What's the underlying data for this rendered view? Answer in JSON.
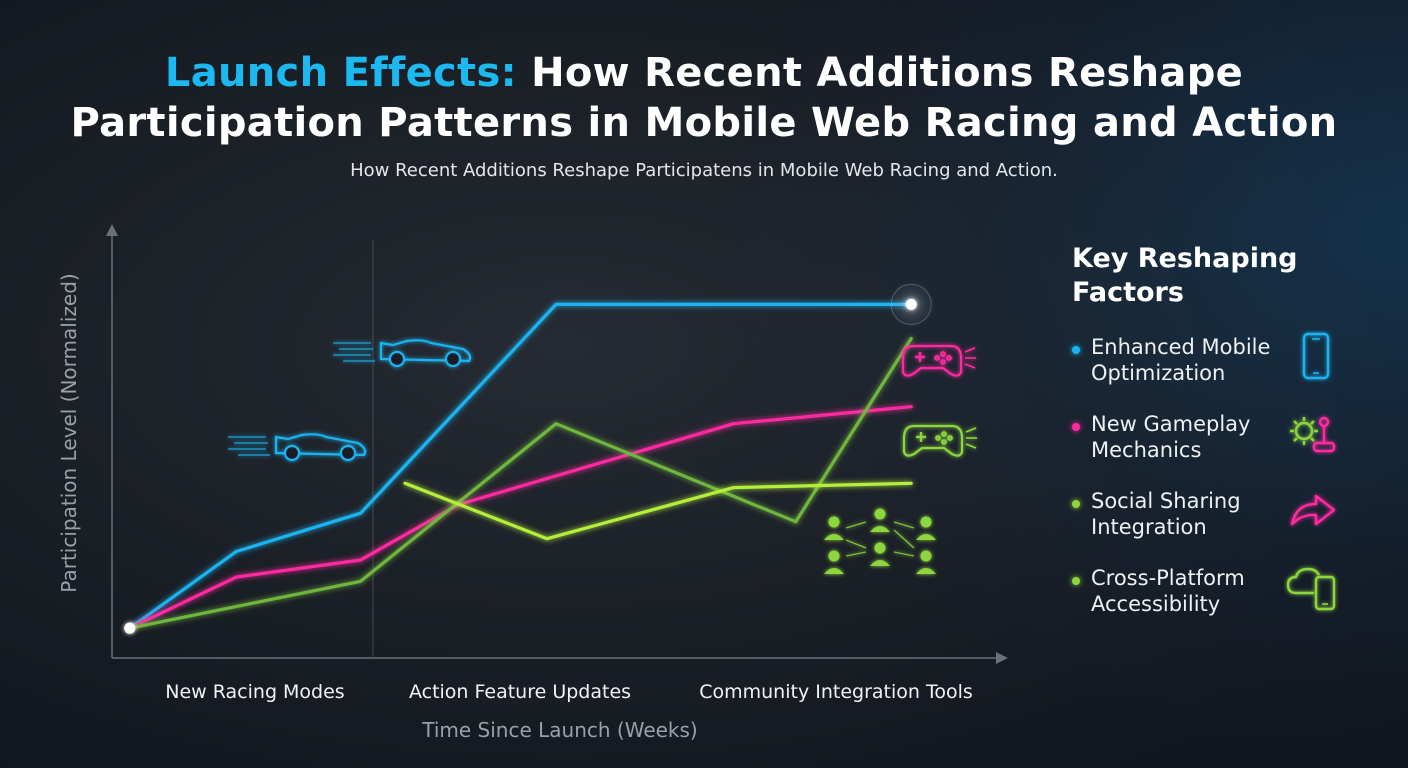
{
  "header": {
    "title_accent": "Launch Effects:",
    "title_rest": " How Recent Additions Reshape",
    "title_line2": "Participation Patterns in Mobile Web Racing and Action",
    "subtitle": "How Recent Additions Reshape Participatens in Mobile Web Racing and Action."
  },
  "chart_data": {
    "type": "line",
    "title": "Launch Effects: How Recent Additions Reshape Participation Patterns in Mobile Web Racing and Action",
    "xlabel": "Time Since Launch (Weeks)",
    "ylabel": "Participation Level (Normalized)",
    "categories": [
      "New Racing Modes",
      "Action Feature Updates",
      "Community Integration Tools"
    ],
    "xlim": [
      0,
      10
    ],
    "ylim": [
      0,
      10
    ],
    "grid": false,
    "legend_position": "right",
    "series": [
      {
        "color": "#1ab4f0",
        "points": [
          [
            0.2,
            0.7
          ],
          [
            1.4,
            2.5
          ],
          [
            2.8,
            3.4
          ],
          [
            5.0,
            8.3
          ],
          [
            9.0,
            8.3
          ]
        ]
      },
      {
        "color": "#ff2aa0",
        "points": [
          [
            0.2,
            0.7
          ],
          [
            1.4,
            1.9
          ],
          [
            2.8,
            2.3
          ],
          [
            3.9,
            3.6
          ],
          [
            7.0,
            5.5
          ],
          [
            9.0,
            5.9
          ]
        ]
      },
      {
        "color": "#6fb53c",
        "points": [
          [
            0.2,
            0.7
          ],
          [
            2.8,
            1.8
          ],
          [
            5.0,
            5.5
          ],
          [
            7.7,
            3.2
          ]
        ]
      },
      {
        "color": "#6fb53c",
        "points": [
          [
            7.7,
            3.2
          ],
          [
            9.0,
            7.5
          ]
        ]
      },
      {
        "color": "#b6ef3a",
        "points": [
          [
            3.3,
            4.1
          ],
          [
            4.9,
            2.8
          ],
          [
            7.0,
            4.0
          ],
          [
            9.0,
            4.1
          ]
        ]
      }
    ],
    "markers": [
      [
        0.2,
        0.7
      ],
      [
        9.0,
        8.3
      ]
    ]
  },
  "legend": {
    "title": "Key Reshaping Factors",
    "items": [
      {
        "label": "Enhanced Mobile Optimization",
        "color": "#1ab4f0",
        "icon": "smartphone-icon"
      },
      {
        "label": "New Gameplay Mechanics",
        "color": "#ff2aa0",
        "icon": "gear-joystick-icon"
      },
      {
        "label": "Social Sharing Integration",
        "color": "#8ed63e",
        "icon": "share-arrow-icon"
      },
      {
        "label": "Cross-Platform Accessibility",
        "color": "#8ed63e",
        "icon": "cloud-device-icon"
      }
    ]
  }
}
